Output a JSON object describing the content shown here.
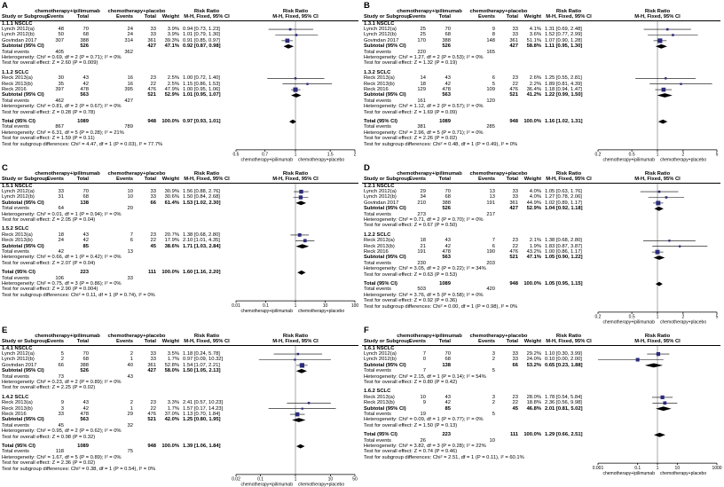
{
  "labels": {
    "group1": "chemotherapy+ipilimumab",
    "group2": "chemotherapy+placebo",
    "study": "Study or Subgroup",
    "events": "Events",
    "total_col": "Total",
    "weight": "Weight",
    "risk_ratio": "Risk Ratio",
    "mh": "M-H, Fixed, 95% CI",
    "subtotal": "Subtotal (95% CI)",
    "total": "Total (95% CI)",
    "total_events": "Total events"
  },
  "colors": {
    "square": "#2c2c7c",
    "diamond": "#000000",
    "line": "#000000"
  },
  "chart_data": [
    {
      "type": "forest",
      "id": "A",
      "effect_measure": "Risk Ratio, M-H, Fixed, 95% CI",
      "subgroups": [
        {
          "label": "1.1.1 NSCLC",
          "studies": [
            {
              "study": "Lynch 2012(a)",
              "e1": 48,
              "t1": 70,
              "e2": 24,
              "t2": 33,
              "weight": "3.9%",
              "rr": "0.94 [0.73, 1.23]"
            },
            {
              "study": "Lynch 2012(b)",
              "e1": 50,
              "t1": 68,
              "e2": 24,
              "t2": 33,
              "weight": "3.9%",
              "rr": "1.01 [0.79, 1.30]"
            },
            {
              "study": "Govindan 2017",
              "e1": 307,
              "t1": 388,
              "e2": 314,
              "t2": 361,
              "weight": "39.3%",
              "rr": "0.91 [0.85, 0.97]"
            }
          ],
          "subtotal": {
            "t1": 526,
            "t2": 427,
            "weight": "47.1%",
            "rr": "0.92 [0.87, 0.98]"
          },
          "total_events": {
            "e1": 405,
            "e2": 362
          },
          "heterogeneity": "Heterogeneity: Chi² = 0.69, df = 2 (P = 0.71); I² = 0%",
          "overall": "Test for overall effect: Z = 2.60 (P = 0.009)"
        },
        {
          "label": "1.1.2 SCLC",
          "studies": [
            {
              "study": "Reck 2013(a)",
              "e1": 30,
              "t1": 43,
              "e2": 16,
              "t2": 23,
              "weight": "2.5%",
              "rr": "1.00 [0.72, 1.40]"
            },
            {
              "study": "Reck 2013(b)",
              "e1": 35,
              "t1": 42,
              "e2": 16,
              "t2": 22,
              "weight": "2.5%",
              "rr": "1.15 [0.86, 1.53]"
            },
            {
              "study": "Reck 2016",
              "e1": 397,
              "t1": 478,
              "e2": 395,
              "t2": 476,
              "weight": "47.9%",
              "rr": "1.00 [0.95, 1.06]"
            }
          ],
          "subtotal": {
            "t1": 563,
            "t2": 521,
            "weight": "52.9%",
            "rr": "1.01 [0.95, 1.07]"
          },
          "total_events": {
            "e1": 462,
            "e2": 427
          },
          "heterogeneity": "Heterogeneity: Chi² = 0.81, df = 2 (P = 0.67); I² = 0%",
          "overall": "Test for overall effect: Z = 0.28 (P = 0.78)"
        }
      ],
      "total": {
        "t1": 1089,
        "t2": 948,
        "weight": "100.0%",
        "rr": "0.97 [0.93, 1.01]"
      },
      "total_events": {
        "e1": 867,
        "e2": 789
      },
      "heterogeneity": "Heterogeneity: Chi² = 6.31, df = 5 (P = 0.28); I² = 21%",
      "overall": "Test for overall effect: Z = 1.59 (P = 0.11)",
      "subgroup_diff": "Test for subgroup differences: Chi² = 4.47, df = 1 (P = 0.03), I² = 77.7%",
      "axis": {
        "ticks": [
          0.5,
          0.7,
          1,
          1.5,
          2
        ]
      }
    },
    {
      "type": "forest",
      "id": "B",
      "effect_measure": "Risk Ratio, M-H, Fixed, 95% CI",
      "subgroups": [
        {
          "label": "1.3.1 NSCLC",
          "studies": [
            {
              "study": "Lynch 2012(a)",
              "e1": 25,
              "t1": 70,
              "e2": 9,
              "t2": 33,
              "weight": "4.1%",
              "rr": "1.31 [0.69, 2.48]"
            },
            {
              "study": "Lynch 2012(b)",
              "e1": 25,
              "t1": 68,
              "e2": 8,
              "t2": 33,
              "weight": "3.6%",
              "rr": "1.52 [0.77, 2.99]"
            },
            {
              "study": "Govindan 2017",
              "e1": 170,
              "t1": 388,
              "e2": 148,
              "t2": 361,
              "weight": "51.1%",
              "rr": "1.07 [0.90, 1.28]"
            }
          ],
          "subtotal": {
            "t1": 526,
            "t2": 427,
            "weight": "58.8%",
            "rr": "1.11 [0.95, 1.30]"
          },
          "total_events": {
            "e1": 220,
            "e2": 165
          },
          "heterogeneity": "Heterogeneity: Chi² = 1.27, df = 2 (P = 0.53); I² = 0%",
          "overall": "Test for overall effect: Z = 1.32 (P = 0.19)"
        },
        {
          "label": "1.3.2 SCLC",
          "studies": [
            {
              "study": "Reck 2013(a)",
              "e1": 14,
              "t1": 43,
              "e2": 6,
              "t2": 23,
              "weight": "2.6%",
              "rr": "1.25 [0.55, 2.81]"
            },
            {
              "study": "Reck 2013(b)",
              "e1": 18,
              "t1": 42,
              "e2": 5,
              "t2": 22,
              "weight": "2.2%",
              "rr": "1.89 [0.81, 4.39]"
            },
            {
              "study": "Reck 2016",
              "e1": 129,
              "t1": 478,
              "e2": 109,
              "t2": 476,
              "weight": "36.4%",
              "rr": "1.18 [0.94, 1.47]"
            }
          ],
          "subtotal": {
            "t1": 563,
            "t2": 521,
            "weight": "41.2%",
            "rr": "1.22 [0.99, 1.50]"
          },
          "total_events": {
            "e1": 161,
            "e2": 120
          },
          "heterogeneity": "Heterogeneity: Chi² = 1.12, df = 2 (P = 0.57); I² = 0%",
          "overall": "Test for overall effect: Z = 1.69 (P = 0.09)"
        }
      ],
      "total": {
        "t1": 1089,
        "t2": 948,
        "weight": "100.0%",
        "rr": "1.16 [1.02, 1.31]"
      },
      "total_events": {
        "e1": 381,
        "e2": 285
      },
      "heterogeneity": "Heterogeneity: Chi² = 2.96, df = 5 (P = 0.71); I² = 0%",
      "overall": "Test for overall effect: Z = 2.26 (P = 0.02)",
      "subgroup_diff": "Test for subgroup differences: Chi² = 0.48, df = 1 (P = 0.49), I² = 0%",
      "axis": {
        "ticks": [
          0.2,
          0.5,
          1,
          2,
          5
        ]
      }
    },
    {
      "type": "forest",
      "id": "C",
      "effect_measure": "Risk Ratio, M-H, Fixed, 95% CI",
      "subgroups": [
        {
          "label": "1.5.1 NSCLC",
          "studies": [
            {
              "study": "Lynch 2012(a)",
              "e1": 33,
              "t1": 70,
              "e2": 10,
              "t2": 33,
              "weight": "30.9%",
              "rr": "1.56 [0.88, 2.76]"
            },
            {
              "study": "Lynch 2012(b)",
              "e1": 31,
              "t1": 68,
              "e2": 10,
              "t2": 33,
              "weight": "30.6%",
              "rr": "1.50 [0.84, 2.68]"
            }
          ],
          "subtotal": {
            "t1": 138,
            "t2": 66,
            "weight": "61.4%",
            "rr": "1.53 [1.02, 2.30]"
          },
          "total_events": {
            "e1": 64,
            "e2": 20
          },
          "heterogeneity": "Heterogeneity: Chi² = 0.01, df = 1 (P = 0.94); I² = 0%",
          "overall": "Test for overall effect: Z = 2.05 (P = 0.04)"
        },
        {
          "label": "1.5.2 SCLC",
          "studies": [
            {
              "study": "Reck 2013(a)",
              "e1": 18,
              "t1": 43,
              "e2": 7,
              "t2": 23,
              "weight": "20.7%",
              "rr": "1.38 [0.68, 2.80]"
            },
            {
              "study": "Reck 2013(b)",
              "e1": 24,
              "t1": 42,
              "e2": 6,
              "t2": 22,
              "weight": "17.9%",
              "rr": "2.10 [1.01, 4.35]"
            }
          ],
          "subtotal": {
            "t1": 85,
            "t2": 45,
            "weight": "38.6%",
            "rr": "1.71 [1.03, 2.84]"
          },
          "total_events": {
            "e1": 42,
            "e2": 13
          },
          "heterogeneity": "Heterogeneity: Chi² = 0.66, df = 1 (P = 0.42); I² = 0%",
          "overall": "Test for overall effect: Z = 2.07 (P = 0.04)"
        }
      ],
      "total": {
        "t1": 223,
        "t2": 111,
        "weight": "100.0%",
        "rr": "1.60 [1.16, 2.20]"
      },
      "total_events": {
        "e1": 106,
        "e2": 33
      },
      "heterogeneity": "Heterogeneity: Chi² = 0.75, df = 3 (P = 0.86); I² = 0%",
      "overall": "Test for overall effect: Z = 2.90 (P = 0.004)",
      "subgroup_diff": "Test for subgroup differences: Chi² = 0.11, df = 1 (P = 0.74), I² = 0%",
      "axis": {
        "ticks": [
          0.01,
          0.1,
          1,
          10,
          100
        ]
      }
    },
    {
      "type": "forest",
      "id": "D",
      "effect_measure": "Risk Ratio, M-H, Fixed, 95% CI",
      "subgroups": [
        {
          "label": "1.2.1 NSCLC",
          "studies": [
            {
              "study": "Lynch 2012(a)",
              "e1": 29,
              "t1": 70,
              "e2": 13,
              "t2": 33,
              "weight": "4.0%",
              "rr": "1.05 [0.63, 1.76]"
            },
            {
              "study": "Lynch 2012(b)",
              "e1": 34,
              "t1": 68,
              "e2": 13,
              "t2": 33,
              "weight": "4.0%",
              "rr": "1.27 [0.78, 2.06]"
            },
            {
              "study": "Govindan 2017",
              "e1": 210,
              "t1": 388,
              "e2": 191,
              "t2": 361,
              "weight": "44.9%",
              "rr": "1.02 [0.89, 1.17]"
            }
          ],
          "subtotal": {
            "t1": 526,
            "t2": 427,
            "weight": "52.9%",
            "rr": "1.04 [0.92, 1.18]"
          },
          "total_events": {
            "e1": 273,
            "e2": 217
          },
          "heterogeneity": "Heterogeneity: Chi² = 0.71, df = 2 (P = 0.70); I² = 0%",
          "overall": "Test for overall effect: Z = 0.67 (P = 0.50)"
        },
        {
          "label": "1.2.2 SCLC",
          "studies": [
            {
              "study": "Reck 2013(a)",
              "e1": 18,
              "t1": 43,
              "e2": 7,
              "t2": 23,
              "weight": "2.1%",
              "rr": "1.38 [0.68, 2.80]"
            },
            {
              "study": "Reck 2013(b)",
              "e1": 21,
              "t1": 42,
              "e2": 6,
              "t2": 22,
              "weight": "1.9%",
              "rr": "1.83 [0.87, 3.87]"
            },
            {
              "study": "Reck 2016",
              "e1": 191,
              "t1": 478,
              "e2": 190,
              "t2": 476,
              "weight": "43.2%",
              "rr": "1.00 [0.86, 1.17]"
            }
          ],
          "subtotal": {
            "t1": 563,
            "t2": 521,
            "weight": "47.1%",
            "rr": "1.05 [0.90, 1.22]"
          },
          "total_events": {
            "e1": 230,
            "e2": 203
          },
          "heterogeneity": "Heterogeneity: Chi² = 3.05, df = 2 (P = 0.22); I² = 34%",
          "overall": "Test for overall effect: Z = 0.63 (P = 0.53)"
        }
      ],
      "total": {
        "t1": 1089,
        "t2": 948,
        "weight": "100.0%",
        "rr": "1.05 [0.95, 1.15]"
      },
      "total_events": {
        "e1": 503,
        "e2": 420
      },
      "heterogeneity": "Heterogeneity: Chi² = 3.76, df = 5 (P = 0.58); I² = 0%",
      "overall": "Test for overall effect: Z = 0.92 (P = 0.36)",
      "subgroup_diff": "Test for subgroup differences: Chi² = 0.00, df = 1 (P = 0.98), I² = 0%",
      "axis": {
        "ticks": [
          0.2,
          0.5,
          1,
          2,
          5
        ]
      }
    },
    {
      "type": "forest",
      "id": "E",
      "effect_measure": "Risk Ratio, M-H, Fixed, 95% CI",
      "subgroups": [
        {
          "label": "1.4.1 NSCLC",
          "studies": [
            {
              "study": "Lynch 2012(a)",
              "e1": 5,
              "t1": 70,
              "e2": 2,
              "t2": 33,
              "weight": "3.5%",
              "rr": "1.18 [0.24, 5.78]"
            },
            {
              "study": "Lynch 2012(b)",
              "e1": 2,
              "t1": 68,
              "e2": 1,
              "t2": 33,
              "weight": "1.7%",
              "rr": "0.97 [0.09, 10.32]"
            },
            {
              "study": "Govindan 2017",
              "e1": 66,
              "t1": 388,
              "e2": 40,
              "t2": 361,
              "weight": "52.8%",
              "rr": "1.54 [1.07, 2.21]"
            }
          ],
          "subtotal": {
            "t1": 526,
            "t2": 427,
            "weight": "58.0%",
            "rr": "1.50 [1.05, 2.13]"
          },
          "total_events": {
            "e1": 73,
            "e2": 43
          },
          "heterogeneity": "Heterogeneity: Chi² = 0.23, df = 2 (P = 0.89); I² = 0%",
          "overall": "Test for overall effect: Z = 2.25 (P = 0.02)"
        },
        {
          "label": "1.4.2 SCLC",
          "studies": [
            {
              "study": "Reck 2013(a)",
              "e1": 9,
              "t1": 43,
              "e2": 2,
              "t2": 23,
              "weight": "3.3%",
              "rr": "2.41 [0.57, 10.23]"
            },
            {
              "study": "Reck 2013(b)",
              "e1": 3,
              "t1": 42,
              "e2": 1,
              "t2": 22,
              "weight": "1.7%",
              "rr": "1.57 [0.17, 14.23]"
            },
            {
              "study": "Reck 2016",
              "e1": 33,
              "t1": 478,
              "e2": 29,
              "t2": 476,
              "weight": "37.0%",
              "rr": "1.13 [0.70, 1.84]"
            }
          ],
          "subtotal": {
            "t1": 563,
            "t2": 521,
            "weight": "42.0%",
            "rr": "1.25 [0.80, 1.95]"
          },
          "total_events": {
            "e1": 45,
            "e2": 32
          },
          "heterogeneity": "Heterogeneity: Chi² = 0.95, df = 2 (P = 0.62); I² = 0%",
          "overall": "Test for overall effect: Z = 0.98 (P = 0.32)"
        }
      ],
      "total": {
        "t1": 1089,
        "t2": 948,
        "weight": "100.0%",
        "rr": "1.39 [1.06, 1.84]"
      },
      "total_events": {
        "e1": 118,
        "e2": 75
      },
      "heterogeneity": "Heterogeneity: Chi² = 1.67, df = 5 (P = 0.89); I² = 0%",
      "overall": "Test for overall effect: Z = 2.36 (P = 0.02)",
      "subgroup_diff": "Test for subgroup differences: Chi² = 0.38, df = 1 (P = 0.54), I² = 0%",
      "axis": {
        "ticks": [
          0.02,
          0.1,
          1,
          10,
          50
        ]
      }
    },
    {
      "type": "forest",
      "id": "F",
      "effect_measure": "Risk Ratio, M-H, Fixed, 95% CI",
      "subgroups": [
        {
          "label": "1.6.1 NSCLC",
          "studies": [
            {
              "study": "Lynch 2012(a)",
              "e1": 7,
              "t1": 70,
              "e2": 3,
              "t2": 33,
              "weight": "29.2%",
              "rr": "1.10 [0.30, 3.99]"
            },
            {
              "study": "Lynch 2012(b)",
              "e1": 0,
              "t1": 68,
              "e2": 2,
              "t2": 33,
              "weight": "24.0%",
              "rr": "0.10 [0.00, 2.00]"
            }
          ],
          "subtotal": {
            "t1": 138,
            "t2": 66,
            "weight": "53.2%",
            "rr": "0.65 [0.23, 1.88]"
          },
          "total_events": {
            "e1": 7,
            "e2": 5
          },
          "heterogeneity": "Heterogeneity: Chi² = 2.15, df = 1 (P = 0.14); I² = 54%",
          "overall": "Test for overall effect: Z = 0.80 (P = 0.42)"
        },
        {
          "label": "1.6.2 SCLC",
          "studies": [
            {
              "study": "Reck 2013(a)",
              "e1": 10,
              "t1": 43,
              "e2": 3,
              "t2": 23,
              "weight": "28.0%",
              "rr": "1.78 [0.54, 5.84]"
            },
            {
              "study": "Reck 2013(b)",
              "e1": 9,
              "t1": 42,
              "e2": 2,
              "t2": 22,
              "weight": "18.8%",
              "rr": "2.36 [0.56, 9.98]"
            }
          ],
          "subtotal": {
            "t1": 85,
            "t2": 45,
            "weight": "46.8%",
            "rr": "2.01 [0.81, 5.02]"
          },
          "total_events": {
            "e1": 19,
            "e2": 5
          },
          "heterogeneity": "Heterogeneity: Chi² = 0.09, df = 1 (P = 0.77); I² = 0%",
          "overall": "Test for overall effect: Z = 1.50 (P = 0.13)"
        }
      ],
      "total": {
        "t1": 223,
        "t2": 111,
        "weight": "100.0%",
        "rr": "1.29 [0.66, 2.51]"
      },
      "total_events": {
        "e1": 26,
        "e2": 10
      },
      "heterogeneity": "Heterogeneity: Chi² = 3.82, df = 3 (P = 0.28); I² = 22%",
      "overall": "Test for overall effect: Z = 0.74 (P = 0.46)",
      "subgroup_diff": "Test for subgroup differences: Chi² = 2.51, df = 1 (P = 0.11), I² = 60.1%",
      "axis": {
        "ticks": [
          0.001,
          0.1,
          1,
          10,
          1000
        ]
      }
    }
  ]
}
